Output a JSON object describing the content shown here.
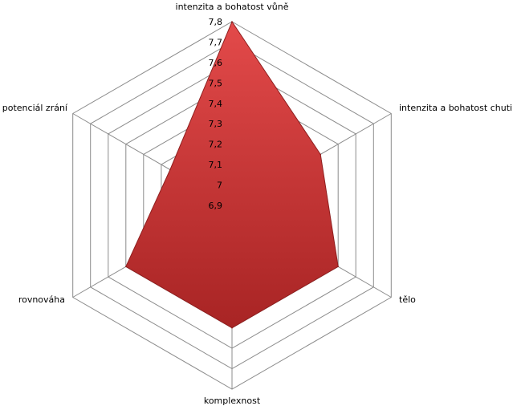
{
  "chart_data": {
    "type": "radar",
    "axes": [
      "intenzita a bohatost vůně",
      "intenzita a bohatost chuti",
      "tělo",
      "komplexnost",
      "rovnováha",
      "potenciál zrání"
    ],
    "series": [
      {
        "values": [
          7.8,
          7.4,
          7.5,
          7.5,
          7.5,
          7.25
        ],
        "color": "#c83232"
      }
    ],
    "rlim": [
      6.9,
      7.8
    ],
    "ticks": [
      "6,9",
      "7",
      "7,1",
      "7,2",
      "7,3",
      "7,4",
      "7,5",
      "7,6",
      "7,7",
      "7,8"
    ],
    "tick_values": [
      6.9,
      7.0,
      7.1,
      7.2,
      7.3,
      7.4,
      7.5,
      7.6,
      7.7,
      7.8
    ],
    "legend": "none",
    "grid": true
  }
}
